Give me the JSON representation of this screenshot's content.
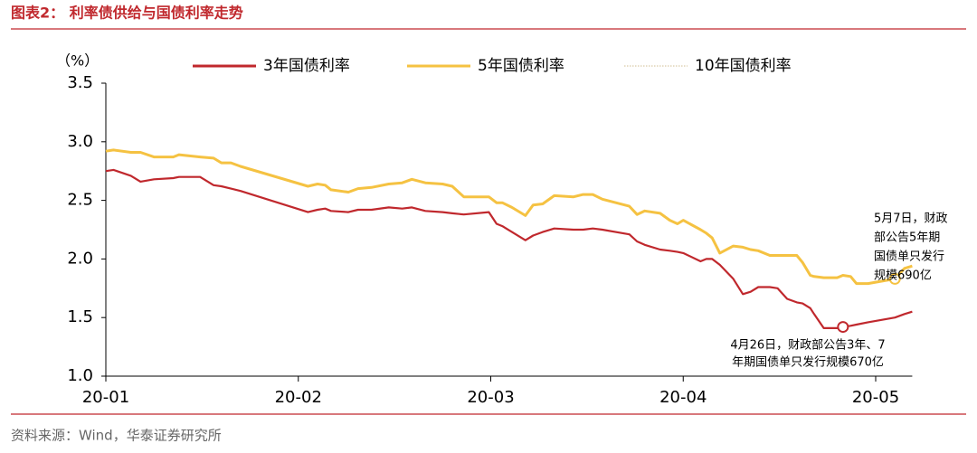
{
  "chart_data": {
    "type": "line",
    "title": "图表2：  利率债供给与国债利率走势",
    "y_unit": "（%）",
    "source": "资料来源：Wind，华泰证券研究所",
    "x": [
      1.0,
      1.04,
      1.13,
      1.18,
      1.25,
      1.35,
      1.38,
      1.49,
      1.56,
      1.6,
      1.65,
      1.7,
      2.05,
      2.1,
      2.14,
      2.17,
      2.26,
      2.31,
      2.38,
      2.47,
      2.54,
      2.59,
      2.66,
      2.75,
      2.8,
      2.86,
      2.99,
      3.03,
      3.06,
      3.11,
      3.18,
      3.22,
      3.27,
      3.33,
      3.43,
      3.48,
      3.53,
      3.58,
      3.72,
      3.76,
      3.8,
      3.88,
      3.93,
      3.97,
      4.0,
      4.09,
      4.12,
      4.15,
      4.19,
      4.26,
      4.31,
      4.35,
      4.39,
      4.45,
      4.49,
      4.54,
      4.59,
      4.62,
      4.66,
      4.68,
      4.73,
      4.8,
      4.83,
      4.87,
      4.9,
      4.96,
      5.1,
      5.15,
      5.19
    ],
    "xlim": [
      1,
      5.19
    ],
    "xticks": [
      {
        "value": 1,
        "label": "20-01"
      },
      {
        "value": 2,
        "label": "20-02"
      },
      {
        "value": 3,
        "label": "20-03"
      },
      {
        "value": 4,
        "label": "20-04"
      },
      {
        "value": 5,
        "label": "20-05"
      }
    ],
    "ylim": [
      1.0,
      3.5
    ],
    "yticks": [
      {
        "value": 1,
        "label": "1.0"
      },
      1.5,
      {
        "value": 2,
        "label": "2.0"
      },
      2.5,
      {
        "value": 3,
        "label": "3.0"
      },
      3.5
    ],
    "grid": false,
    "legend": "top",
    "series": [
      {
        "name": "3年国债利率",
        "color": "#c0282d",
        "style": "solid",
        "values": [
          2.75,
          2.76,
          2.71,
          2.66,
          2.68,
          2.69,
          2.7,
          2.7,
          2.63,
          2.62,
          2.6,
          2.58,
          2.4,
          2.42,
          2.43,
          2.41,
          2.4,
          2.42,
          2.42,
          2.44,
          2.43,
          2.44,
          2.41,
          2.4,
          2.39,
          2.38,
          2.4,
          2.3,
          2.28,
          2.23,
          2.16,
          2.2,
          2.23,
          2.26,
          2.25,
          2.25,
          2.26,
          2.25,
          2.21,
          2.15,
          2.12,
          2.08,
          2.07,
          2.06,
          2.05,
          1.98,
          2.0,
          2.0,
          1.95,
          1.83,
          1.7,
          1.72,
          1.76,
          1.76,
          1.75,
          1.66,
          1.63,
          1.62,
          1.58,
          1.53,
          1.41,
          1.41,
          1.42,
          1.43,
          1.44,
          1.46,
          1.5,
          1.53,
          1.55
        ]
      },
      {
        "name": "5年国债利率",
        "color": "#f5c242",
        "style": "solid",
        "values": [
          2.92,
          2.93,
          2.91,
          2.91,
          2.87,
          2.87,
          2.89,
          2.87,
          2.86,
          2.82,
          2.82,
          2.79,
          2.62,
          2.64,
          2.63,
          2.59,
          2.57,
          2.6,
          2.61,
          2.64,
          2.65,
          2.68,
          2.65,
          2.64,
          2.62,
          2.53,
          2.53,
          2.48,
          2.48,
          2.44,
          2.37,
          2.46,
          2.47,
          2.54,
          2.53,
          2.55,
          2.55,
          2.51,
          2.45,
          2.38,
          2.41,
          2.39,
          2.33,
          2.3,
          2.33,
          2.25,
          2.22,
          2.18,
          2.05,
          2.11,
          2.1,
          2.08,
          2.07,
          2.03,
          2.03,
          2.03,
          2.03,
          1.97,
          1.86,
          1.85,
          1.84,
          1.84,
          1.86,
          1.85,
          1.79,
          1.79,
          1.83,
          1.92,
          1.94
        ]
      },
      {
        "name": "10年国债利率",
        "color": "#d9cba8",
        "style": "dotted",
        "values": [
          null,
          null,
          null,
          null,
          null,
          null,
          null,
          null,
          null,
          null,
          null,
          null,
          null,
          null,
          null,
          null,
          null,
          null,
          null,
          null,
          null,
          null,
          null,
          null,
          null,
          null,
          null,
          null,
          null,
          null,
          null,
          null,
          null,
          null,
          null,
          null,
          null,
          null,
          null,
          null,
          null,
          null,
          null,
          null,
          null,
          null,
          null,
          null,
          null,
          null,
          null,
          null,
          null,
          null,
          null,
          null,
          null,
          null,
          null,
          null,
          null,
          null,
          null,
          null,
          null,
          null,
          null,
          null,
          null
        ]
      }
    ],
    "annotations": [
      {
        "lines": [
          "5月7日，财政",
          "部公告5年期",
          "国债单只发行",
          "规模690亿"
        ]
      },
      {
        "lines": [
          "4月26日，财政部公告3年、7",
          "年期国债单只发行规模670亿"
        ]
      }
    ]
  }
}
